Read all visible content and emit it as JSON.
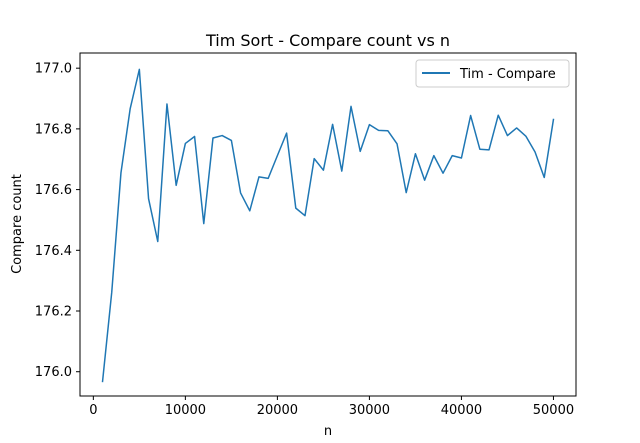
{
  "chart_data": {
    "type": "line",
    "title": "Tim Sort - Compare count vs n",
    "xlabel": "n",
    "ylabel": "Compare count",
    "xlim": [
      -1450,
      52450
    ],
    "ylim": [
      175.92,
      177.05
    ],
    "xticks": [
      0,
      10000,
      20000,
      30000,
      40000,
      50000
    ],
    "xtick_labels": [
      "0",
      "10000",
      "20000",
      "30000",
      "40000",
      "50000"
    ],
    "yticks": [
      176.0,
      176.2,
      176.4,
      176.6,
      176.8,
      177.0
    ],
    "ytick_labels": [
      "176.0",
      "176.2",
      "176.4",
      "176.6",
      "176.8",
      "177.0"
    ],
    "grid": false,
    "legend_position": "upper right",
    "series": [
      {
        "name": "Tim - Compare",
        "color": "#1f77b4",
        "x": [
          1000,
          2000,
          3000,
          4000,
          5000,
          6000,
          7000,
          8000,
          9000,
          10000,
          11000,
          12000,
          13000,
          14000,
          15000,
          16000,
          17000,
          18000,
          19000,
          20000,
          21000,
          22000,
          23000,
          24000,
          25000,
          26000,
          27000,
          28000,
          29000,
          30000,
          31000,
          32000,
          33000,
          34000,
          35000,
          36000,
          37000,
          38000,
          39000,
          40000,
          41000,
          42000,
          43000,
          44000,
          45000,
          46000,
          47000,
          48000,
          49000,
          50000
        ],
        "values": [
          175.968,
          176.262,
          176.655,
          176.866,
          176.996,
          176.57,
          176.429,
          176.882,
          176.614,
          176.752,
          176.775,
          176.488,
          176.77,
          176.778,
          176.762,
          176.589,
          176.53,
          176.642,
          176.637,
          176.712,
          176.786,
          176.539,
          176.514,
          176.702,
          176.664,
          176.815,
          176.661,
          176.874,
          176.726,
          176.814,
          176.795,
          176.794,
          176.751,
          176.59,
          176.718,
          176.631,
          176.712,
          176.654,
          176.712,
          176.704,
          176.844,
          176.733,
          176.731,
          176.845,
          176.778,
          176.803,
          176.776,
          176.724,
          176.64,
          176.831
        ]
      }
    ]
  }
}
